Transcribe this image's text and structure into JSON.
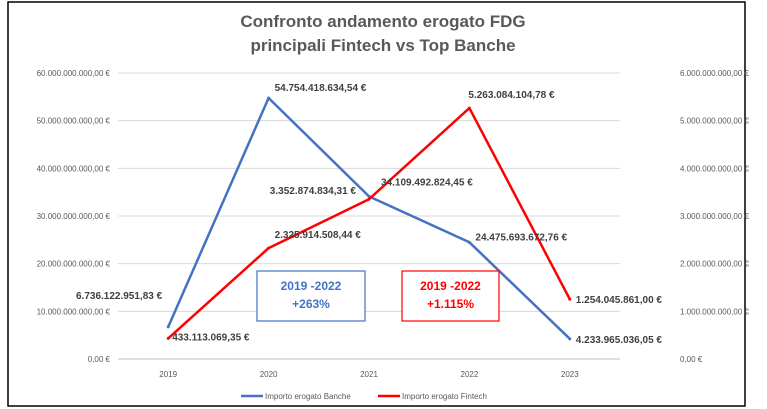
{
  "chart_data": {
    "type": "line",
    "title_lines": [
      "Confronto andamento erogato FDG",
      "principali Fintech vs Top Banche"
    ],
    "categories": [
      "2019",
      "2020",
      "2021",
      "2022",
      "2023"
    ],
    "y_left": {
      "min": 0,
      "max": 60000000000,
      "ticks": [
        "0,00 €",
        "10.000.000.000,00 €",
        "20.000.000.000,00 €",
        "30.000.000.000,00 €",
        "40.000.000.000,00 €",
        "50.000.000.000,00 €",
        "60.000.000.000,00 €"
      ]
    },
    "y_right": {
      "min": 0,
      "max": 6000000000,
      "ticks": [
        "0,00 €",
        "1.000.000.000,00 €",
        "2.000.000.000,00 €",
        "3.000.000.000,00 €",
        "4.000.000.000,00 €",
        "5.000.000.000,00 €",
        "6.000.000.000,00 €"
      ]
    },
    "grid": true,
    "legend_position": "bottom",
    "series": [
      {
        "name": "Importo erogato Banche",
        "axis": "left",
        "color": "#4472C4",
        "values": [
          6736122951.83,
          54754418634.54,
          34109492824.45,
          24475693672.76,
          4233965036.05
        ],
        "labels": [
          "6.736.122.951,83 €",
          "54.754.418.634,54 €",
          "34.109.492.824,45 €",
          "24.475.693.672,76 €",
          "4.233.965.036,05 €"
        ]
      },
      {
        "name": "Importo erogato Fintech",
        "axis": "right",
        "color": "#FF0000",
        "values": [
          433113069.35,
          2325914508.44,
          3352874834.31,
          5263084104.78,
          1254045861.0
        ],
        "labels": [
          "433.113.069,35 €",
          "2.325.914.508,44 €",
          "3.352.874.834,31 €",
          "5.263.084.104,78 €",
          "1.254.045.861,00 €"
        ]
      }
    ],
    "annotations": [
      {
        "line1": "2019 -2022",
        "line2": "+263%",
        "color": "#4472C4"
      },
      {
        "line1": "2019 -2022",
        "line2": "+1.115%",
        "color": "#FF0000"
      }
    ]
  }
}
